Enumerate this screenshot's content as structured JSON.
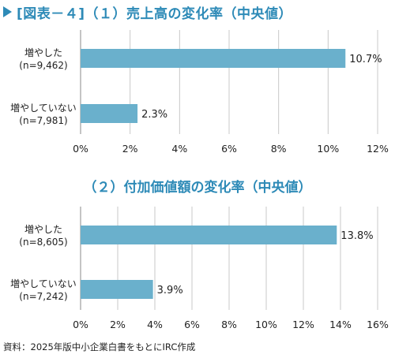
{
  "figure_title": "[図表－４]（１）売上高の変化率（中央値）",
  "source_note": "資料：2025年版中小企業白書をもとにIRC作成",
  "chart_data": [
    {
      "type": "bar",
      "orientation": "horizontal",
      "title": "（１）売上高の変化率（中央値）",
      "categories": [
        {
          "line1": "増やした",
          "line2": "(n=9,462)"
        },
        {
          "line1": "増やしていない",
          "line2": "(n=7,981)"
        }
      ],
      "values": [
        10.7,
        2.3
      ],
      "value_labels": [
        "10.7%",
        "2.3%"
      ],
      "xlim": [
        0,
        12
      ],
      "xticks": [
        "0%",
        "2%",
        "4%",
        "6%",
        "8%",
        "10%",
        "12%"
      ],
      "bar_color": "#6ab0cc",
      "grid": true
    },
    {
      "type": "bar",
      "orientation": "horizontal",
      "title": "（２）付加価値額の変化率（中央値）",
      "categories": [
        {
          "line1": "増やした",
          "line2": "(n=8,605)"
        },
        {
          "line1": "増やしていない",
          "line2": "(n=7,242)"
        }
      ],
      "values": [
        13.8,
        3.9
      ],
      "value_labels": [
        "13.8%",
        "3.9%"
      ],
      "xlim": [
        0,
        16
      ],
      "xticks": [
        "0%",
        "2%",
        "4%",
        "6%",
        "8%",
        "10%",
        "12%",
        "14%",
        "16%"
      ],
      "bar_color": "#6ab0cc",
      "grid": true
    }
  ],
  "colors": {
    "accent": "#2d8ab7",
    "bar": "#6ab0cc",
    "grid": "#c8c8c8"
  }
}
